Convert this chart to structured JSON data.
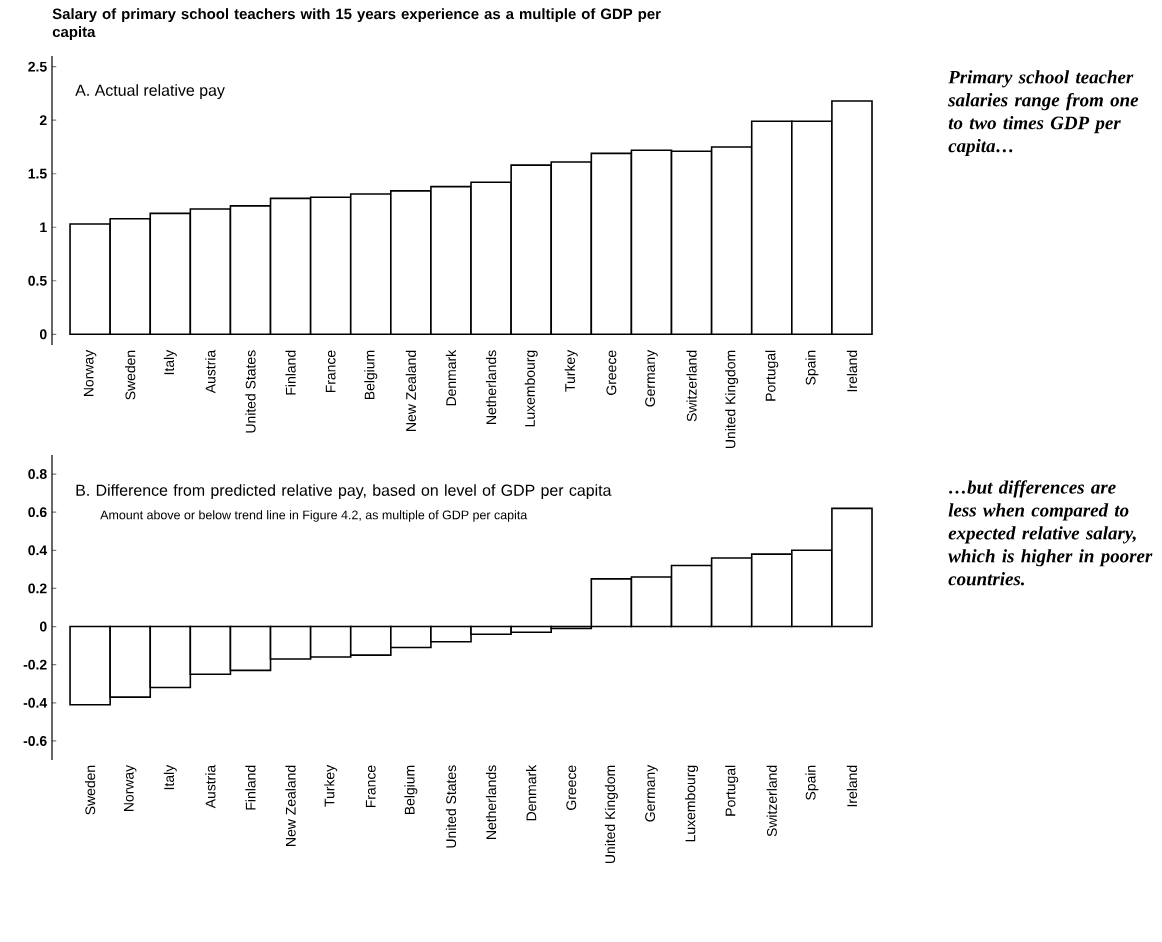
{
  "chart_data": [
    {
      "type": "bar",
      "title": "Salary of primary school teachers with 15 years experience as a multiple of GDP per capita",
      "subtitle": "A.  Actual relative pay",
      "categories": [
        "Norway",
        "Sweden",
        "Italy",
        "Austria",
        "United States",
        "Finland",
        "France",
        "Belgium",
        "New Zealand",
        "Denmark",
        "Netherlands",
        "Luxembourg",
        "Turkey",
        "Greece",
        "Germany",
        "Switzerland",
        "United Kingdom",
        "Portugal",
        "Spain",
        "Ireland"
      ],
      "values": [
        1.03,
        1.08,
        1.13,
        1.17,
        1.2,
        1.27,
        1.28,
        1.31,
        1.34,
        1.38,
        1.42,
        1.58,
        1.61,
        1.69,
        1.72,
        1.71,
        1.75,
        1.99,
        1.99,
        2.18
      ],
      "color": "#ffffff",
      "ylim": [
        -0.1,
        2.6
      ],
      "yticks": [
        0,
        0.5,
        1,
        1.5,
        2,
        2.5
      ],
      "annotations": [
        "Primary school teacher salaries range from one to two times GDP per capita…"
      ]
    },
    {
      "type": "bar",
      "title": "B.  Difference from predicted relative pay, based on level of GDP per capita",
      "subtitle": "Amount above or below trend line in Figure 4.2, as multiple of GDP per capita",
      "categories": [
        "Sweden",
        "Norway",
        "Italy",
        "Austria",
        "Finland",
        "New Zealand",
        "Turkey",
        "France",
        "Belgium",
        "United States",
        "Netherlands",
        "Denmark",
        "Greece",
        "United Kingdom",
        "Germany",
        "Luxembourg",
        "Portugal",
        "Switzerland",
        "Spain",
        "Ireland"
      ],
      "values": [
        -0.41,
        -0.37,
        -0.32,
        -0.25,
        -0.23,
        -0.17,
        -0.16,
        -0.15,
        -0.11,
        -0.08,
        -0.04,
        -0.03,
        -0.01,
        0.25,
        0.26,
        0.32,
        0.36,
        0.38,
        0.4,
        0.62
      ],
      "color": "#ffffff",
      "ylim": [
        -0.7,
        0.9
      ],
      "yticks": [
        -0.6,
        -0.4,
        -0.2,
        0,
        0.2,
        0.4,
        0.6,
        0.8
      ],
      "annotations": [
        "…but differences are less when compared to expected relative salary, which is higher in poorer countries."
      ]
    }
  ]
}
